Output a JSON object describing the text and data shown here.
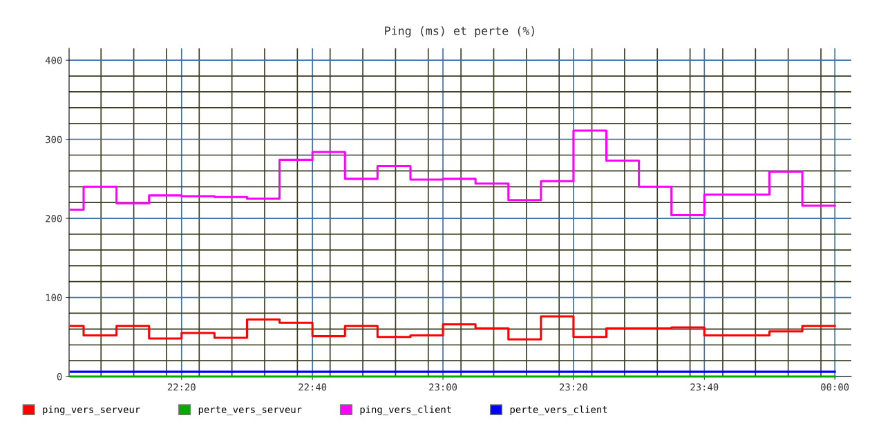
{
  "chart_data": {
    "type": "step",
    "title": "Ping (ms) et perte (%)",
    "x": [
      22.05,
      22.083,
      22.167,
      22.25,
      22.333,
      22.417,
      22.5,
      22.583,
      22.667,
      22.75,
      22.833,
      22.917,
      23.0,
      23.083,
      23.167,
      23.25,
      23.333,
      23.417,
      23.5,
      23.583,
      23.667,
      23.75,
      23.833,
      23.917,
      24.0
    ],
    "series": [
      {
        "name": "ping_vers_serveur",
        "color": "#ff0000",
        "values": [
          64,
          52,
          64,
          48,
          55,
          49,
          72,
          68,
          51,
          64,
          50,
          52,
          66,
          61,
          47,
          76,
          50,
          61,
          61,
          62,
          52,
          52,
          57,
          64,
          64
        ]
      },
      {
        "name": "perte_vers_serveur",
        "color": "#00aa00",
        "values": [
          0,
          0,
          0,
          0,
          0,
          0,
          0,
          0,
          0,
          0,
          0,
          0,
          0,
          0,
          0,
          0,
          0,
          0,
          0,
          0,
          0,
          0,
          0,
          0,
          0
        ]
      },
      {
        "name": "ping_vers_client",
        "color": "#ff00ff",
        "values": [
          211,
          240,
          219,
          229,
          228,
          227,
          225,
          274,
          284,
          250,
          266,
          249,
          250,
          244,
          223,
          247,
          311,
          273,
          240,
          204,
          230,
          230,
          259,
          216,
          216
        ]
      },
      {
        "name": "perte_vers_client",
        "color": "#0000ff",
        "values": [
          6,
          6,
          6,
          6,
          6,
          6,
          6,
          6,
          6,
          6,
          6,
          6,
          6,
          6,
          6,
          6,
          6,
          6,
          6,
          6,
          6,
          6,
          6,
          6,
          6
        ]
      }
    ],
    "xlim": [
      22.046,
      24.042
    ],
    "ylim": [
      0,
      415
    ],
    "xticks": [
      {
        "value": 22.333,
        "label": "22:20"
      },
      {
        "value": 22.667,
        "label": "22:40"
      },
      {
        "value": 23.0,
        "label": "23:00"
      },
      {
        "value": 23.333,
        "label": "23:20"
      },
      {
        "value": 23.667,
        "label": "23:40"
      },
      {
        "value": 24.0,
        "label": "00:00"
      }
    ],
    "yticks": [
      0,
      100,
      200,
      300,
      400
    ],
    "grid": true,
    "legend": "bottom"
  }
}
